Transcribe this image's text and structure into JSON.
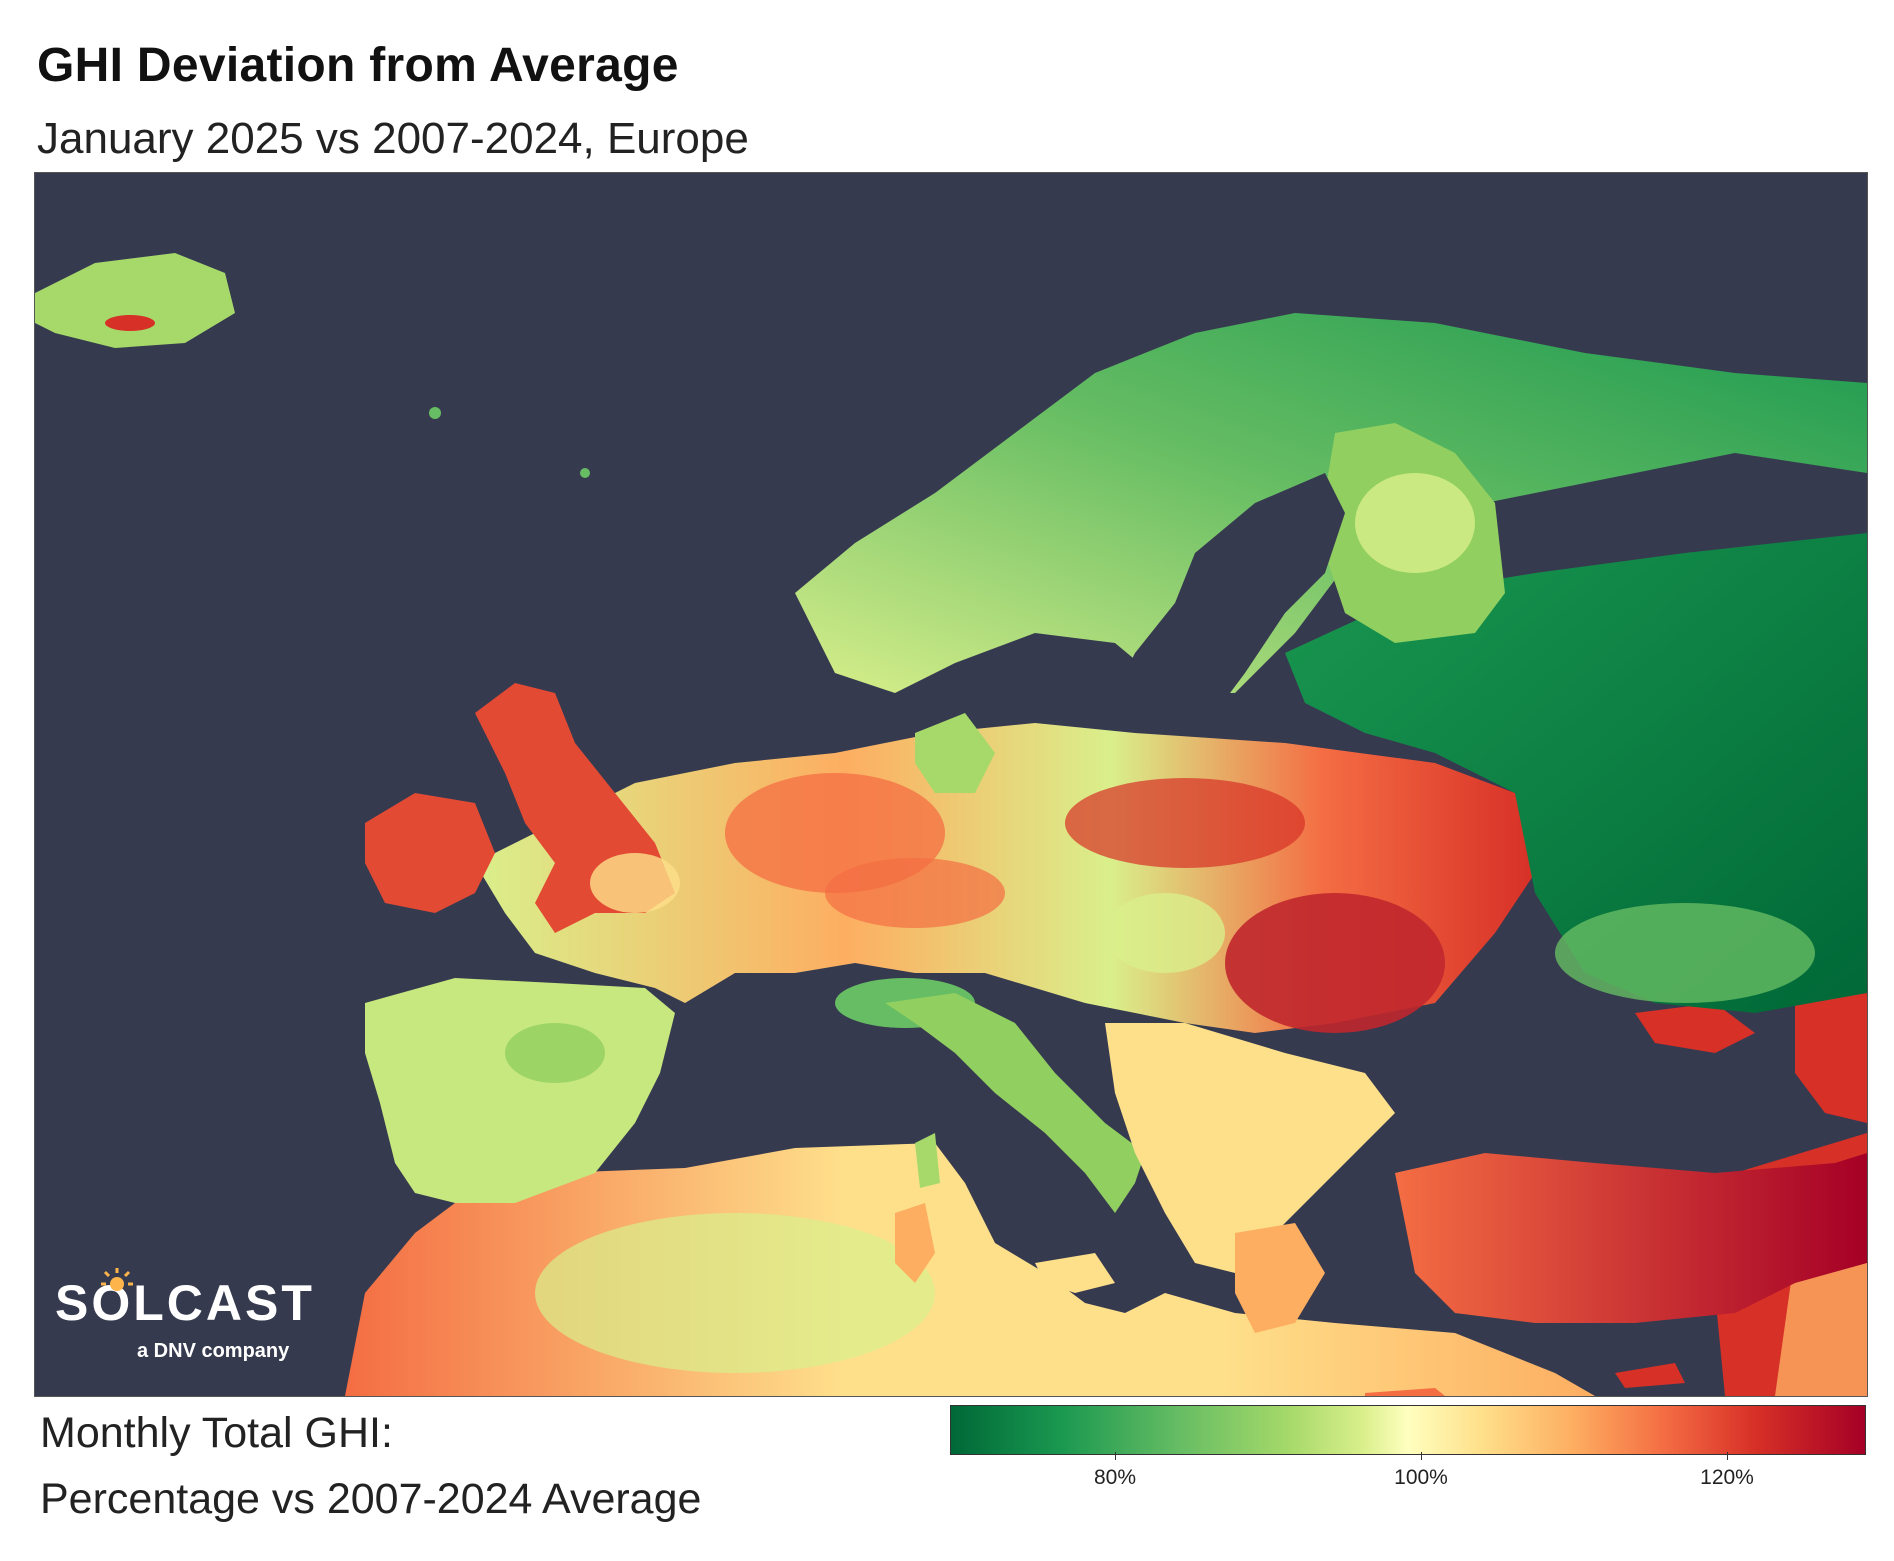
{
  "header": {
    "title": "GHI Deviation from Average",
    "subtitle": "January 2025 vs 2007-2024, Europe"
  },
  "logo": {
    "brand": "SOLCAST",
    "tagline": "a DNV company"
  },
  "legend": {
    "title_line1": "Monthly Total GHI:",
    "title_line2": "Percentage vs 2007-2024 Average",
    "ticks": [
      "80%",
      "100%",
      "120%"
    ],
    "range": [
      70,
      130
    ],
    "colormap": [
      "#006837",
      "#1a9850",
      "#66bd63",
      "#a6d96a",
      "#d9ef8b",
      "#ffffbf",
      "#fee08b",
      "#fdae61",
      "#f46d43",
      "#d73027",
      "#a50026"
    ]
  },
  "map": {
    "sea_color": "#363a4f"
  }
}
